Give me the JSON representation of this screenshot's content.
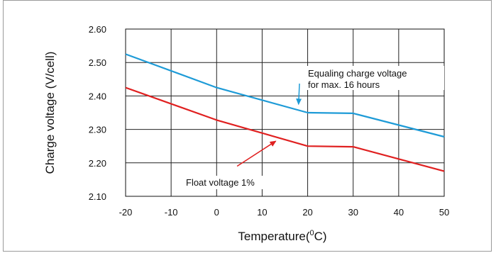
{
  "chart_data": {
    "type": "line",
    "xlabel": "Temperature(",
    "xlabel_unit_sup": "0",
    "xlabel_unit": "C)",
    "ylabel": "Charge voltage (V/cell)",
    "x": [
      -20,
      -10,
      0,
      10,
      20,
      30,
      40,
      50
    ],
    "x_ticks": [
      "-20",
      "-10",
      "0",
      "10",
      "20",
      "30",
      "40",
      "50"
    ],
    "y_ticks": [
      "2.10",
      "2.20",
      "2.30",
      "2.40",
      "2.50",
      "2.60"
    ],
    "xlim": [
      -20,
      50
    ],
    "ylim": [
      2.1,
      2.6
    ],
    "grid": true,
    "series": [
      {
        "key": "equalizing",
        "color": "#1e9bd7",
        "points": [
          [
            -20,
            2.525
          ],
          [
            0,
            2.425
          ],
          [
            20,
            2.35
          ],
          [
            30,
            2.348
          ],
          [
            50,
            2.278
          ]
        ]
      },
      {
        "key": "float",
        "color": "#e02020",
        "points": [
          [
            -20,
            2.425
          ],
          [
            0,
            2.328
          ],
          [
            20,
            2.25
          ],
          [
            30,
            2.248
          ],
          [
            50,
            2.175
          ]
        ]
      }
    ],
    "annotations": [
      {
        "key": "equalizing",
        "lines": [
          "Equaling charge voltage",
          "for max. 16 hours"
        ],
        "arrow_tip": [
          18,
          2.375
        ],
        "arrow_tail": [
          18.2,
          2.437
        ],
        "color": "#1e9bd7"
      },
      {
        "key": "float",
        "lines": [
          "Float voltage 1%"
        ],
        "arrow_tip": [
          13,
          2.265
        ],
        "arrow_tail": [
          4.5,
          2.19
        ],
        "color": "#e02020"
      }
    ]
  }
}
